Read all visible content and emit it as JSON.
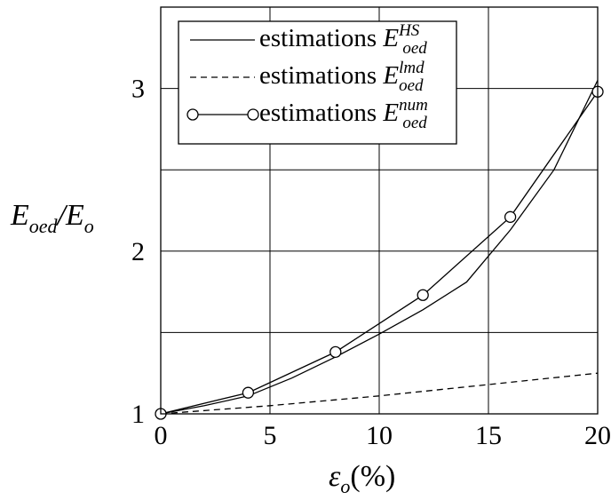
{
  "chart_data": {
    "type": "line",
    "title": "",
    "xlabel": "εo(%)",
    "ylabel": "Eoed/Eo",
    "xlim": [
      0,
      20
    ],
    "ylim": [
      1,
      3.5
    ],
    "xticks": [
      0,
      5,
      10,
      15,
      20
    ],
    "yticks": [
      1,
      2,
      3
    ],
    "grid": true,
    "legend_position": "top-left",
    "series": [
      {
        "name": "estimations E_oed^HS",
        "label_text": "estimations",
        "symbol_base": "E",
        "symbol_sub": "oed",
        "symbol_sup": "HS",
        "style": "solid",
        "marker": "none",
        "color": "#000000",
        "x": [
          0,
          2,
          4,
          6,
          8,
          10,
          12,
          14,
          16,
          18,
          20
        ],
        "y": [
          1.0,
          1.05,
          1.11,
          1.22,
          1.35,
          1.49,
          1.64,
          1.81,
          2.13,
          2.5,
          3.05
        ]
      },
      {
        "name": "estimations E_oed^lmd",
        "label_text": "estimations",
        "symbol_base": "E",
        "symbol_sub": "oed",
        "symbol_sup": "lmd",
        "style": "dashed",
        "marker": "none",
        "color": "#000000",
        "x": [
          0,
          5,
          10,
          15,
          20
        ],
        "y": [
          1.0,
          1.05,
          1.11,
          1.18,
          1.25
        ]
      },
      {
        "name": "estimations E_oed^num",
        "label_text": "estimations",
        "symbol_base": "E",
        "symbol_sub": "oed",
        "symbol_sup": "num",
        "style": "solid",
        "marker": "circle",
        "color": "#000000",
        "x": [
          0,
          4,
          8,
          12,
          16,
          20
        ],
        "y": [
          1.0,
          1.13,
          1.38,
          1.73,
          2.21,
          2.98
        ]
      }
    ]
  }
}
